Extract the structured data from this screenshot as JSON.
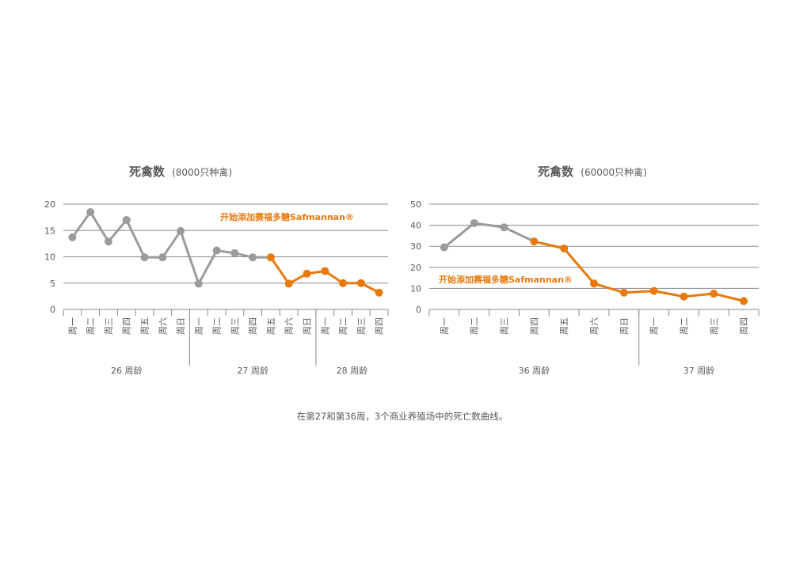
{
  "colors": {
    "before": "#9b9b9b",
    "after": "#e8790c",
    "grid": "#8a8a8a",
    "text": "#5a5a5a"
  },
  "caption": "在第27和第36周，3个商业养殖场中的死亡数曲线。",
  "chart_data": [
    {
      "type": "line",
      "title": "死禽数",
      "subtitle": "(8000只种禽)",
      "ylim": [
        0,
        20
      ],
      "yticks": [
        "0",
        "5",
        "10",
        "15",
        "20"
      ],
      "categories": [
        "周一",
        "周二",
        "周三",
        "周四",
        "周五",
        "周六",
        "周日",
        "周一",
        "周二",
        "周三",
        "周四",
        "周五",
        "周六",
        "周日",
        "周一",
        "周二",
        "周三",
        "周四"
      ],
      "groups": [
        {
          "label": "26 周龄",
          "start": 0,
          "end": 6
        },
        {
          "label": "27 周龄",
          "start": 7,
          "end": 13
        },
        {
          "label": "28 周龄",
          "start": 14,
          "end": 17
        }
      ],
      "annotation": "开始添加赛福多糖Safmannan®",
      "switch_index": 11,
      "values": [
        13.7,
        18.5,
        12.9,
        17.0,
        9.9,
        9.9,
        14.9,
        4.9,
        11.2,
        10.7,
        9.9,
        9.9,
        4.9,
        6.8,
        7.3,
        5.0,
        5.0,
        3.2
      ],
      "grid": true
    },
    {
      "type": "line",
      "title": "死禽数",
      "subtitle": "(60000只种禽)",
      "ylim": [
        0,
        50
      ],
      "yticks": [
        "0",
        "10",
        "20",
        "30",
        "40",
        "50"
      ],
      "categories": [
        "周一",
        "周二",
        "周三",
        "周四",
        "周五",
        "周六",
        "周日",
        "周一",
        "周二",
        "周三",
        "周四"
      ],
      "groups": [
        {
          "label": "36 周龄",
          "start": 0,
          "end": 6
        },
        {
          "label": "37 周龄",
          "start": 7,
          "end": 10
        }
      ],
      "annotation": "开始添加赛福多糖Safmannan®",
      "switch_index": 3,
      "values": [
        29.5,
        41.0,
        39.0,
        32.3,
        29.0,
        12.3,
        8.0,
        8.8,
        6.1,
        7.5,
        4.0
      ],
      "grid": true
    }
  ]
}
